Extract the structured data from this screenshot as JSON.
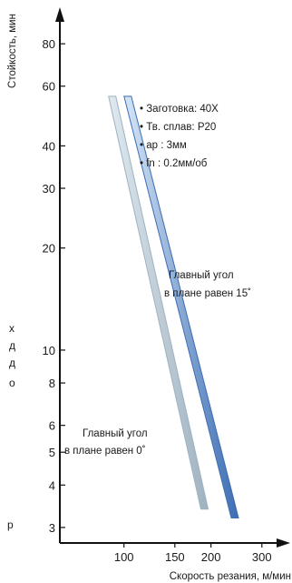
{
  "chart_data": {
    "type": "line",
    "xlabel": "Скорость резания, м/мин",
    "ylabel": "Стойкость, мин",
    "x_scale": "log",
    "y_scale": "log",
    "xlim": [
      60,
      360
    ],
    "ylim": [
      2.7,
      100
    ],
    "x_ticks": [
      100,
      150,
      200,
      300
    ],
    "x_tick_labels": [
      "100",
      "150",
      "200",
      "300"
    ],
    "y_ticks": [
      3,
      4,
      5,
      6,
      8,
      10,
      20,
      30,
      40,
      60,
      80
    ],
    "y_tick_labels": [
      "3",
      "4",
      "5",
      "6",
      "8",
      "10",
      "20",
      "30",
      "40",
      "60",
      "80"
    ],
    "grid": false,
    "series": [
      {
        "name": "Главный угол в плане равен 0˚",
        "points": [
          {
            "x": 91,
            "y": 56
          },
          {
            "x": 190,
            "y": 3.4
          }
        ]
      },
      {
        "name": "Главный угол в плане равен 15˚",
        "points": [
          {
            "x": 103,
            "y": 56
          },
          {
            "x": 242,
            "y": 3.2
          }
        ]
      }
    ],
    "annotations": [
      "• Заготовка: 40X",
      "• Тв. сплав: P20",
      "• ap : 3мм",
      "• fn : 0.2мм/об"
    ],
    "label_15": [
      "Главный угол",
      "в плане равен 15˚"
    ],
    "label_0": [
      "Главный угол",
      "в плане равен 0˚"
    ]
  },
  "fragments": [
    "х",
    "д",
    "д",
    "о",
    "р"
  ],
  "colors": {
    "series_0_light": "#dfe9f0",
    "series_0_dark": "#9fb2c0",
    "series_1_light": "#d6e6f7",
    "series_1_dark": "#3d6db3",
    "axis": "#111111"
  }
}
